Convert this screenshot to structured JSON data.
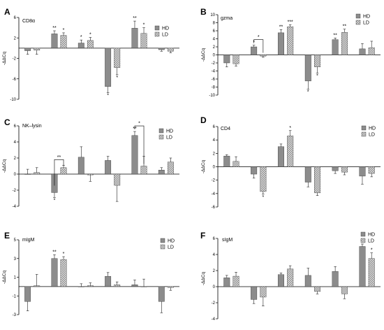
{
  "chart_data": [
    {
      "panel": "A",
      "gene_label": "CD8α",
      "type": "bar",
      "ylabel": "-ΔΔCq",
      "ylim": [
        -10,
        6
      ],
      "ticks": [
        6,
        2,
        -2,
        -6,
        -10
      ],
      "series": [
        {
          "name": "HD",
          "values": [
            -0.5,
            2.8,
            1.0,
            -7.5,
            3.9,
            -0.3
          ],
          "errors": [
            0.7,
            0.6,
            0.6,
            1.2,
            1.4,
            0.3
          ],
          "sig": [
            "",
            "**",
            "*",
            "*",
            "**",
            ""
          ]
        },
        {
          "name": "LD",
          "values": [
            -0.4,
            2.5,
            1.5,
            -3.8,
            2.9,
            -0.6
          ],
          "errors": [
            0.8,
            0.5,
            0.6,
            1.4,
            1.1,
            0.3
          ],
          "sig": [
            "",
            "*",
            "*",
            "*",
            "*",
            ""
          ]
        }
      ]
    },
    {
      "panel": "B",
      "gene_label": "gzma",
      "type": "bar",
      "ylabel": "-ΔΔCq",
      "ylim": [
        -10,
        10
      ],
      "ticks": [
        10,
        8,
        6,
        4,
        2,
        0,
        -2,
        -4,
        -6,
        -8,
        -10
      ],
      "series": [
        {
          "name": "HD",
          "values": [
            -2.0,
            2.0,
            5.5,
            -6.5,
            3.8,
            1.5
          ],
          "errors": [
            1.0,
            0.4,
            0.8,
            2.0,
            0.4,
            1.3
          ],
          "sig": [
            "",
            "*",
            "**",
            "*",
            "**",
            ""
          ]
        },
        {
          "name": "LD",
          "values": [
            -2.2,
            -0.3,
            7.0,
            -3.0,
            5.6,
            1.8
          ],
          "errors": [
            0.6,
            0.3,
            0.5,
            1.5,
            0.8,
            1.6
          ],
          "sig": [
            "",
            "",
            "***",
            "*",
            "**",
            ""
          ]
        }
      ],
      "brackets": [
        {
          "group": 1,
          "label": "*"
        }
      ]
    },
    {
      "panel": "C",
      "gene_label": "NK–lysin",
      "type": "bar",
      "ylabel": "-ΔΔCq",
      "ylim": [
        -4,
        6
      ],
      "ticks": [
        6,
        4,
        2,
        0,
        -2,
        -4
      ],
      "series": [
        {
          "name": "HD",
          "values": [
            0.0,
            -2.3,
            2.1,
            1.7,
            4.8,
            0.5
          ],
          "errors": [
            0.6,
            0.6,
            1.3,
            0.5,
            0.5,
            0.3
          ],
          "sig": [
            "",
            "*",
            "",
            "",
            "**",
            ""
          ]
        },
        {
          "name": "LD",
          "values": [
            0.2,
            0.8,
            -0.1,
            -1.4,
            1.0,
            1.5
          ],
          "errors": [
            0.6,
            0.3,
            0.8,
            2.0,
            1.2,
            0.5
          ],
          "sig": [
            "",
            "",
            "",
            "",
            "",
            ""
          ]
        }
      ],
      "brackets": [
        {
          "group": 1,
          "label": "**"
        },
        {
          "group": 4,
          "label": "*"
        }
      ]
    },
    {
      "panel": "D",
      "gene_label": "CD4",
      "type": "bar",
      "ylabel": "-ΔΔCq",
      "ylim": [
        -6,
        6
      ],
      "ticks": [
        6,
        4,
        2,
        0,
        -2,
        -4,
        -6
      ],
      "series": [
        {
          "name": "HD",
          "values": [
            1.6,
            -1.1,
            3.0,
            -2.3,
            -0.6,
            -1.4
          ],
          "errors": [
            0.2,
            0.6,
            0.4,
            0.7,
            0.4,
            1.2
          ],
          "sig": [
            "",
            "",
            "",
            "",
            "",
            ""
          ]
        },
        {
          "name": "LD",
          "values": [
            0.8,
            -3.7,
            4.6,
            -3.9,
            -0.8,
            -1.0
          ],
          "errors": [
            0.7,
            0.4,
            0.8,
            0.4,
            0.4,
            0.5
          ],
          "sig": [
            "",
            "*",
            "*",
            "",
            "",
            ""
          ]
        }
      ]
    },
    {
      "panel": "E",
      "gene_label": "mIgM",
      "type": "bar",
      "ylabel": "-ΔΔCq",
      "ylim": [
        -3,
        5
      ],
      "ticks": [
        5,
        3,
        1,
        -1,
        -3
      ],
      "series": [
        {
          "name": "HD",
          "values": [
            -1.6,
            3.0,
            0.0,
            1.1,
            0.2,
            -1.6
          ],
          "errors": [
            1.0,
            0.4,
            0.3,
            0.4,
            0.5,
            1.2
          ],
          "sig": [
            "",
            "**",
            "",
            "",
            "",
            ""
          ]
        },
        {
          "name": "LD",
          "values": [
            0.1,
            2.9,
            0.1,
            0.2,
            0.0,
            -0.1
          ],
          "errors": [
            1.2,
            0.3,
            0.3,
            0.3,
            0.8,
            0.3
          ],
          "sig": [
            "",
            "*",
            "",
            "",
            "",
            ""
          ]
        }
      ]
    },
    {
      "panel": "F",
      "gene_label": "sIgM",
      "type": "bar",
      "ylabel": "-ΔΔCq",
      "ylim": [
        -4,
        6
      ],
      "ticks": [
        6,
        4,
        2,
        0,
        -2,
        -4
      ],
      "series": [
        {
          "name": "HD",
          "values": [
            1.1,
            -1.6,
            1.5,
            1.4,
            1.9,
            5.0
          ],
          "errors": [
            0.3,
            0.5,
            0.2,
            0.9,
            0.6,
            0.3
          ],
          "sig": [
            "",
            "",
            "",
            "",
            "",
            "**"
          ]
        },
        {
          "name": "LD",
          "values": [
            1.3,
            -1.3,
            2.2,
            -0.6,
            -0.9,
            3.5
          ],
          "errors": [
            0.5,
            1.1,
            0.4,
            0.3,
            0.6,
            0.7
          ],
          "sig": [
            "",
            "",
            "",
            "",
            "",
            "*"
          ]
        }
      ]
    }
  ],
  "colors": {
    "HD": "#8c8c8c",
    "LD": "#d2d2d2",
    "axis": "#000000"
  }
}
